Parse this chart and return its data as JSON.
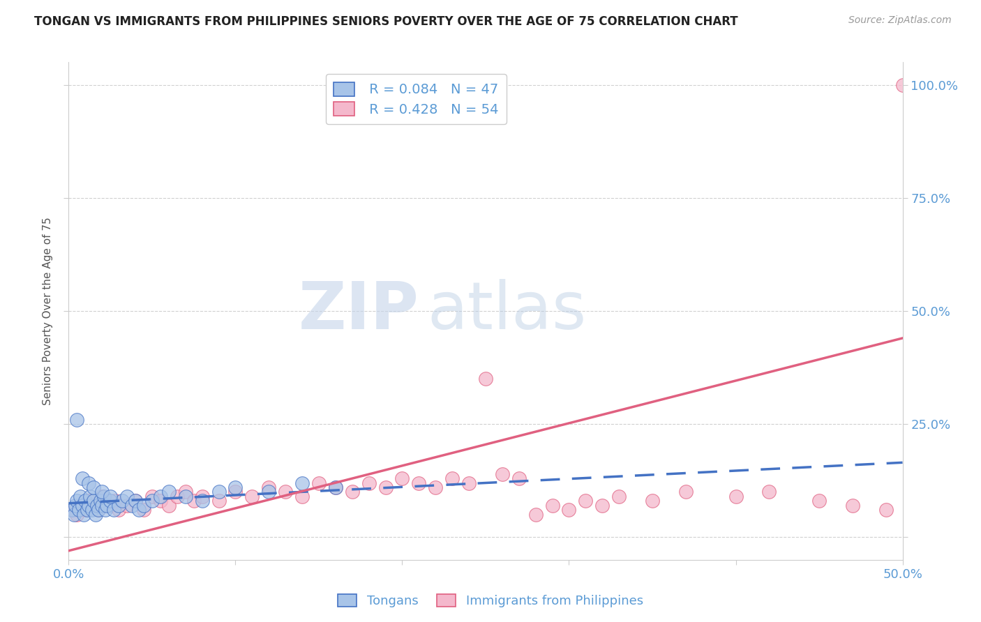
{
  "title": "TONGAN VS IMMIGRANTS FROM PHILIPPINES SENIORS POVERTY OVER THE AGE OF 75 CORRELATION CHART",
  "source": "Source: ZipAtlas.com",
  "ylabel": "Seniors Poverty Over the Age of 75",
  "xlim": [
    0.0,
    0.5
  ],
  "ylim": [
    -0.05,
    1.05
  ],
  "xticks": [
    0.0,
    0.1,
    0.2,
    0.3,
    0.4,
    0.5
  ],
  "xticklabels": [
    "0.0%",
    "",
    "",
    "",
    "",
    "50.0%"
  ],
  "ytick_positions": [
    0.0,
    0.25,
    0.5,
    0.75,
    1.0
  ],
  "ytick_labels": [
    "",
    "25.0%",
    "50.0%",
    "75.0%",
    "100.0%"
  ],
  "blue_R": 0.084,
  "blue_N": 47,
  "pink_R": 0.428,
  "pink_N": 54,
  "blue_color": "#a8c4e8",
  "pink_color": "#f4b8cc",
  "blue_line_color": "#4472c4",
  "pink_line_color": "#e06080",
  "legend_label_blue": "Tongans",
  "legend_label_pink": "Immigrants from Philippines",
  "watermark_ZIP": "ZIP",
  "watermark_atlas": "atlas",
  "blue_scatter_x": [
    0.002,
    0.003,
    0.004,
    0.005,
    0.006,
    0.007,
    0.008,
    0.009,
    0.01,
    0.011,
    0.012,
    0.013,
    0.014,
    0.015,
    0.016,
    0.017,
    0.018,
    0.019,
    0.02,
    0.021,
    0.022,
    0.023,
    0.025,
    0.027,
    0.03,
    0.032,
    0.035,
    0.038,
    0.04,
    0.042,
    0.045,
    0.05,
    0.055,
    0.06,
    0.07,
    0.08,
    0.09,
    0.1,
    0.12,
    0.14,
    0.16,
    0.005,
    0.008,
    0.012,
    0.015,
    0.02,
    0.025
  ],
  "blue_scatter_y": [
    0.06,
    0.05,
    0.07,
    0.08,
    0.06,
    0.09,
    0.07,
    0.05,
    0.08,
    0.06,
    0.07,
    0.09,
    0.06,
    0.08,
    0.05,
    0.07,
    0.06,
    0.08,
    0.07,
    0.09,
    0.06,
    0.07,
    0.08,
    0.06,
    0.07,
    0.08,
    0.09,
    0.07,
    0.08,
    0.06,
    0.07,
    0.08,
    0.09,
    0.1,
    0.09,
    0.08,
    0.1,
    0.11,
    0.1,
    0.12,
    0.11,
    0.26,
    0.13,
    0.12,
    0.11,
    0.1,
    0.09
  ],
  "pink_scatter_x": [
    0.003,
    0.005,
    0.008,
    0.01,
    0.012,
    0.015,
    0.018,
    0.02,
    0.025,
    0.028,
    0.03,
    0.035,
    0.04,
    0.045,
    0.05,
    0.055,
    0.06,
    0.065,
    0.07,
    0.075,
    0.08,
    0.09,
    0.1,
    0.11,
    0.12,
    0.13,
    0.14,
    0.15,
    0.16,
    0.17,
    0.18,
    0.19,
    0.2,
    0.21,
    0.22,
    0.23,
    0.24,
    0.25,
    0.26,
    0.27,
    0.28,
    0.29,
    0.3,
    0.31,
    0.32,
    0.33,
    0.35,
    0.37,
    0.4,
    0.42,
    0.45,
    0.47,
    0.49,
    0.5
  ],
  "pink_scatter_y": [
    0.06,
    0.05,
    0.07,
    0.06,
    0.08,
    0.07,
    0.06,
    0.09,
    0.07,
    0.08,
    0.06,
    0.07,
    0.08,
    0.06,
    0.09,
    0.08,
    0.07,
    0.09,
    0.1,
    0.08,
    0.09,
    0.08,
    0.1,
    0.09,
    0.11,
    0.1,
    0.09,
    0.12,
    0.11,
    0.1,
    0.12,
    0.11,
    0.13,
    0.12,
    0.11,
    0.13,
    0.12,
    0.35,
    0.14,
    0.13,
    0.05,
    0.07,
    0.06,
    0.08,
    0.07,
    0.09,
    0.08,
    0.1,
    0.09,
    0.1,
    0.08,
    0.07,
    0.06,
    1.0
  ],
  "blue_trend_x": [
    0.0,
    0.5
  ],
  "blue_trend_y": [
    0.075,
    0.165
  ],
  "pink_trend_x": [
    0.0,
    0.5
  ],
  "pink_trend_y": [
    -0.03,
    0.44
  ],
  "grid_color": "#d0d0d0",
  "bg_color": "#ffffff",
  "axis_color": "#cccccc",
  "title_color": "#222222",
  "tick_color": "#5b9bd5",
  "source_color": "#999999"
}
